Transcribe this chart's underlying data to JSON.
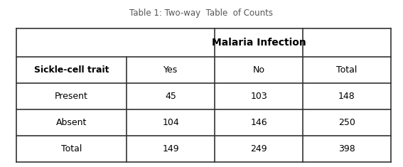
{
  "title": "Table 1: Two-way  Table  of Counts",
  "title_fontsize": 8.5,
  "title_color": "#555555",
  "col_header_main": "Malaria Infection",
  "col_header_main_fontsize": 10,
  "row_header_label": "Sickle-cell trait",
  "row_header_fontsize": 9,
  "sub_headers": [
    "Yes",
    "No",
    "Total"
  ],
  "sub_header_fontsize": 9,
  "row_labels": [
    "Present",
    "Absent",
    "Total"
  ],
  "row_fontsize": 9,
  "table_data": [
    [
      "45",
      "103",
      "148"
    ],
    [
      "104",
      "146",
      "250"
    ],
    [
      "149",
      "249",
      "398"
    ]
  ],
  "data_fontsize": 9,
  "background_color": "#ffffff",
  "cell_bg": "#ffffff",
  "border_color": "#333333",
  "text_color": "#000000",
  "line_width": 1.2,
  "fig_width": 5.67,
  "fig_height": 2.35,
  "dpi": 100
}
